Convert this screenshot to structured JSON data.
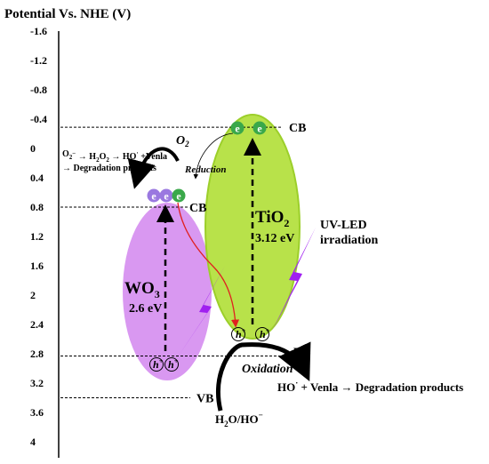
{
  "axis": {
    "label": "Potential Vs. NHE (V)",
    "ticks": [
      {
        "label": "-1.6",
        "value": -1.6
      },
      {
        "label": "-1.2",
        "value": -1.2
      },
      {
        "label": "-0.8",
        "value": -0.8
      },
      {
        "label": "-0.4",
        "value": -0.4
      },
      {
        "label": "0",
        "value": 0
      },
      {
        "label": "0.4",
        "value": 0.4
      },
      {
        "label": "0.8",
        "value": 0.8
      },
      {
        "label": "1.2",
        "value": 1.2
      },
      {
        "label": "1.6",
        "value": 1.6
      },
      {
        "label": "2",
        "value": 2
      },
      {
        "label": "2.4",
        "value": 2.4
      },
      {
        "label": "2.8",
        "value": 2.8
      },
      {
        "label": "3.2",
        "value": 3.2
      },
      {
        "label": "3.6",
        "value": 3.6
      },
      {
        "label": "4",
        "value": 4
      }
    ]
  },
  "tio2": {
    "name": "TiO",
    "subscript": "2",
    "band_gap": "3.12 eV",
    "cb_label": "CB",
    "vb_label": "VB",
    "cb_potential": -0.29,
    "vb_potential": 2.83,
    "color": "#b8e24a"
  },
  "wo3": {
    "name": "WO",
    "subscript": "3",
    "band_gap": "2.6 eV",
    "cb_label": "CB",
    "vb_label": "VB",
    "cb_potential": 0.8,
    "vb_potential": 3.4,
    "color": "#d58df0"
  },
  "electron_symbol": "e",
  "hole_symbol": "h",
  "hole_charge": "+",
  "irradiation": {
    "line1": "UV-LED",
    "line2": "irradiation"
  },
  "reduction": {
    "label": "Reduction",
    "reactant_base": "O",
    "reactant_sub": "2",
    "eq_line1_parts": [
      "O",
      "2",
      "−",
      " → H",
      "2",
      "O",
      "2",
      " → HO",
      "·",
      " +Venla"
    ],
    "eq_line2": "→ Degradation products"
  },
  "oxidation": {
    "label": "Oxidation",
    "reactant_parts": [
      "H",
      "2",
      "O/HO",
      "−"
    ],
    "product_parts": [
      "HO",
      "·",
      " + Venla → Degradation products"
    ]
  },
  "colors": {
    "electron": "#3aa84a",
    "electron_wo3": "#9a78e0",
    "arrow_red": "#e02020",
    "bolt": "#a020f0"
  }
}
